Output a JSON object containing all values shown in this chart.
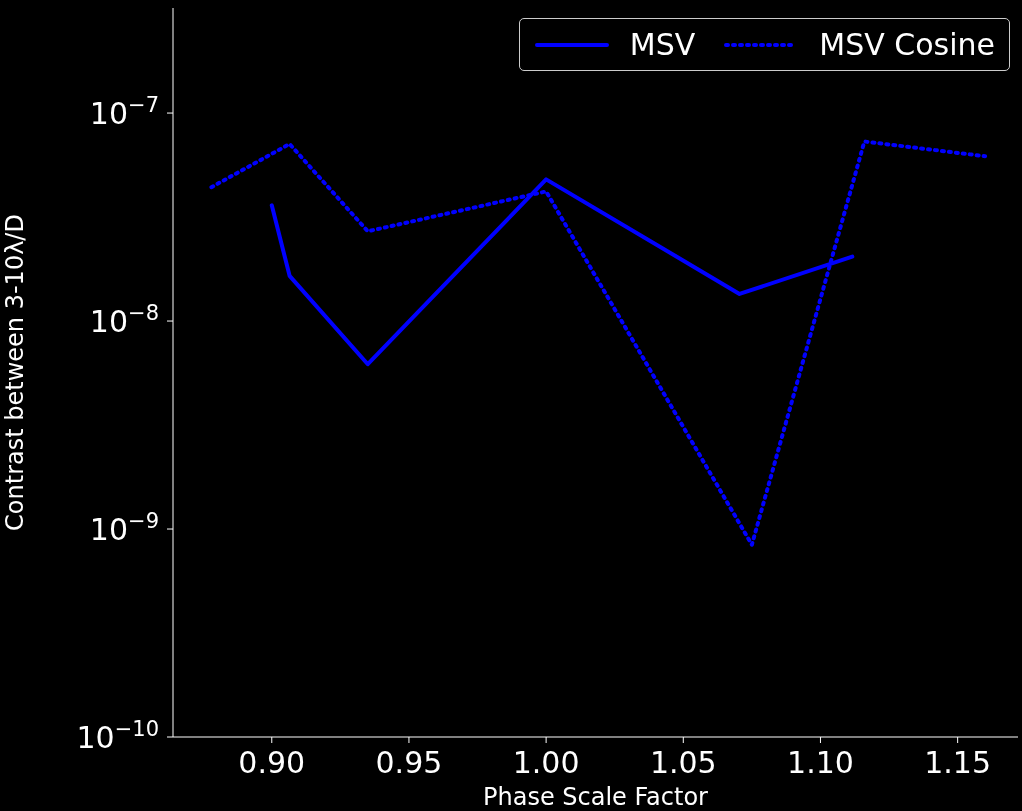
{
  "chart_data": {
    "type": "line",
    "xlabel": "Phase Scale Factor",
    "ylabel": "Contrast between 3-10λ/D",
    "log": "y",
    "legend": "top right",
    "xlim": [
      0.864,
      1.172
    ],
    "xticks": [
      {
        "value": 0.9,
        "label": "0.90"
      },
      {
        "value": 0.95,
        "label": "0.95"
      },
      {
        "value": 1.0,
        "label": "1.00"
      },
      {
        "value": 1.05,
        "label": "1.05"
      },
      {
        "value": 1.1,
        "label": "1.10"
      },
      {
        "value": 1.15,
        "label": "1.15"
      }
    ],
    "ylim": [
      1e-10,
      3.2e-07
    ],
    "yticks": [
      {
        "value": 1e-10,
        "label": "10$^{−10}$"
      },
      {
        "value": 1e-09,
        "label": "10$^{−9}$"
      },
      {
        "value": 1e-08,
        "label": "10$^{−8}$"
      },
      {
        "value": 1e-07,
        "label": "10$^{−7}$"
      }
    ],
    "series": [
      {
        "name": "MSV",
        "color": "#0000ff",
        "line_style": "solid",
        "x": [
          0.9,
          0.9065,
          0.935,
          1.0,
          1.0705,
          1.1116
        ],
        "values": [
          3.6e-08,
          1.65e-08,
          6.2e-09,
          4.8e-08,
          1.35e-08,
          2.04e-08
        ]
      },
      {
        "name": "MSV Cosine",
        "color": "#0000ff",
        "line_style": "dotted",
        "x": [
          0.878,
          0.9065,
          0.935,
          1.0,
          1.075,
          1.116,
          1.16
        ],
        "values": [
          4.4e-08,
          7.1e-08,
          2.7e-08,
          4.2e-08,
          8.4e-10,
          7.3e-08,
          6.2e-08
        ]
      }
    ]
  }
}
